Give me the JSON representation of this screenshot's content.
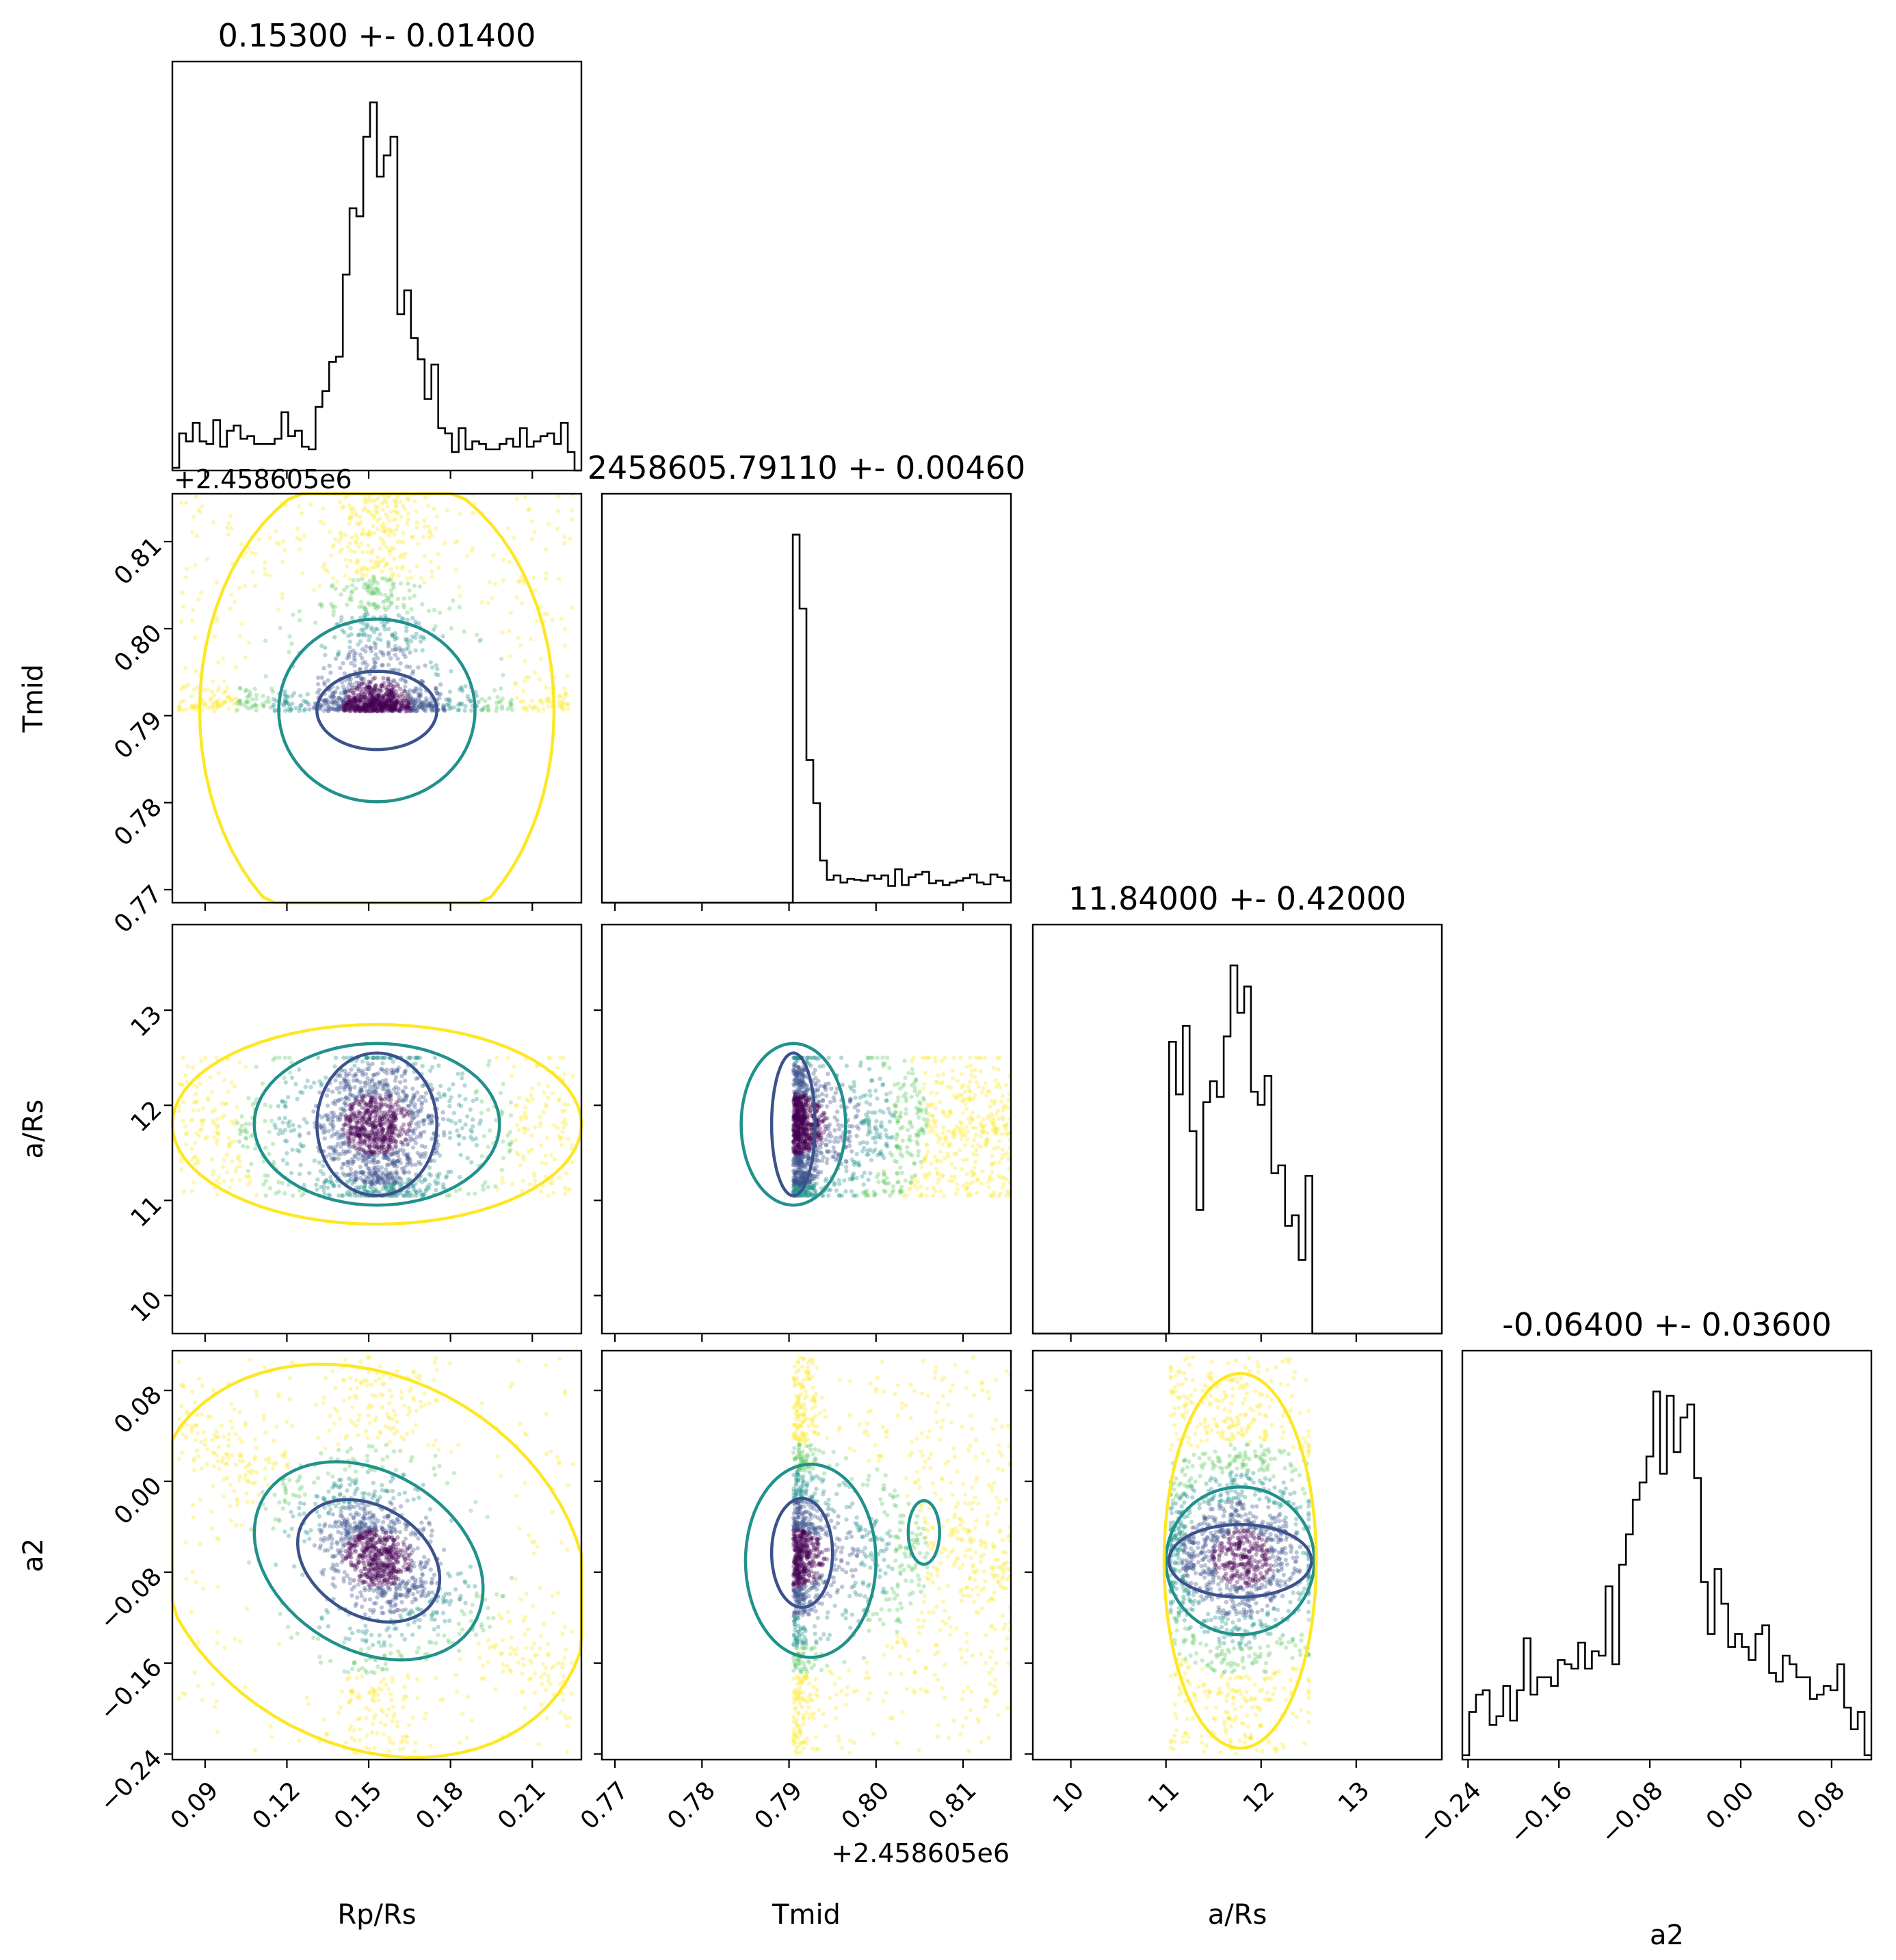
{
  "colors": {
    "axis": "#000000",
    "histogram": "#000000",
    "contour_inner": "#3b528b",
    "contour_mid": "#21918c",
    "contour_outer": "#fde725",
    "scatter_cmap": [
      "#440154",
      "#3b528b",
      "#21918c",
      "#5ec962",
      "#fde725"
    ]
  },
  "chart_data": {
    "type": "corner",
    "parameters": [
      {
        "key": "rprs",
        "label_html": "R<tspan font-size='70%' dy='8'>p</tspan><tspan dy='-8'>/R</tspan><tspan font-size='70%' dy='8'>s</tspan>",
        "label": "Rp/Rs",
        "title": "0.15300 +- 0.01400",
        "range": [
          0.078,
          0.228
        ],
        "ticks": [
          0.09,
          0.12,
          0.15,
          0.18,
          0.21
        ],
        "tick_labels": [
          "0.09",
          "0.12",
          "0.15",
          "0.18",
          "0.21"
        ],
        "offset_label": ""
      },
      {
        "key": "tmid",
        "label": "Tmid",
        "title": "2458605.79110 +- 0.00460",
        "range": [
          0.7685,
          0.8155
        ],
        "ticks": [
          0.77,
          0.78,
          0.79,
          0.8,
          0.81
        ],
        "tick_labels": [
          "0.77",
          "0.78",
          "0.79",
          "0.80",
          "0.81"
        ],
        "offset_label": "+2.458605e6"
      },
      {
        "key": "ars",
        "label": "a/Rs",
        "title": "11.84000 +- 0.42000",
        "range": [
          9.6,
          13.9
        ],
        "ticks": [
          10,
          11,
          12,
          13
        ],
        "tick_labels": [
          "10",
          "11",
          "12",
          "13"
        ],
        "offset_label": ""
      },
      {
        "key": "a2",
        "label": "a2",
        "title": "-0.06400 +- 0.03600",
        "range": [
          -0.245,
          0.115
        ],
        "ticks": [
          -0.24,
          -0.16,
          -0.08,
          0.0,
          0.08
        ],
        "tick_labels": [
          "−0.24",
          "−0.16",
          "−0.08",
          "0.00",
          "0.08"
        ],
        "offset_label": ""
      }
    ],
    "y_labels": [
      "T",
      "a/Rs",
      "a2"
    ],
    "histograms": [
      {
        "param": "rprs",
        "peak": 0.153,
        "shape": "sharp-peak-wide-tails",
        "bins": 60
      },
      {
        "param": "tmid",
        "peak": 0.7906,
        "lower_cutoff": 0.79,
        "shape": "truncated-left-long-right-tail",
        "bins": 60
      },
      {
        "param": "ars",
        "peak": 11.8,
        "lower_cutoff": 11.05,
        "upper_cutoff": 12.5,
        "secondary_peak": 11.1,
        "bins": 60
      },
      {
        "param": "a2",
        "peak": -0.07,
        "shape": "sharp-peak-wide-tails",
        "bins": 60
      }
    ],
    "scatter_points_per_panel": 1800,
    "contour_levels": [
      "inner",
      "mid",
      "outer"
    ]
  }
}
